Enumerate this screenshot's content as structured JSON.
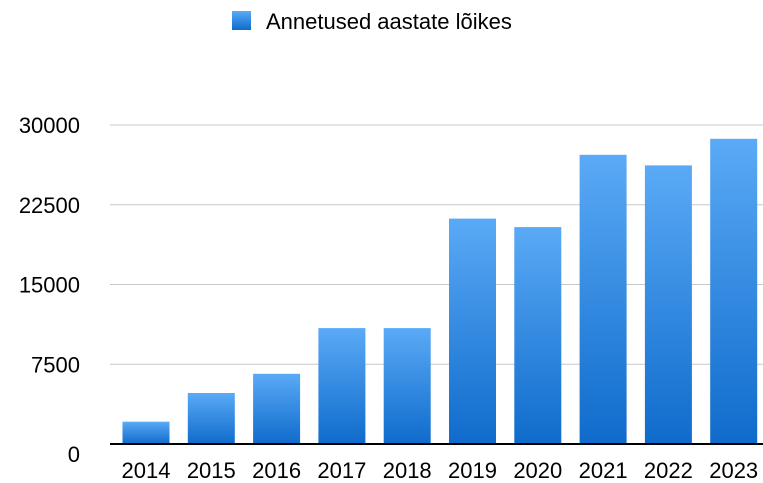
{
  "chart_data": {
    "type": "bar",
    "categories": [
      "2014",
      "2015",
      "2016",
      "2017",
      "2018",
      "2019",
      "2020",
      "2021",
      "2022",
      "2023"
    ],
    "series": [
      {
        "name": "Annetused aastate lõikes",
        "values": [
          2100,
          4800,
          6600,
          10900,
          10900,
          21200,
          20400,
          27200,
          26200,
          28700
        ]
      }
    ],
    "y_ticks": [
      "0",
      "7500",
      "15000",
      "22500",
      "30000"
    ],
    "ylim": [
      0,
      30000
    ],
    "grid": true,
    "legend_position": "top-center",
    "colors": {
      "bar_top": "#5aaaf6",
      "bar_bottom": "#0f6bcb",
      "legend_swatch": "#2b88e6",
      "gridline": "#c8c8c8",
      "axis": "#000000"
    }
  }
}
